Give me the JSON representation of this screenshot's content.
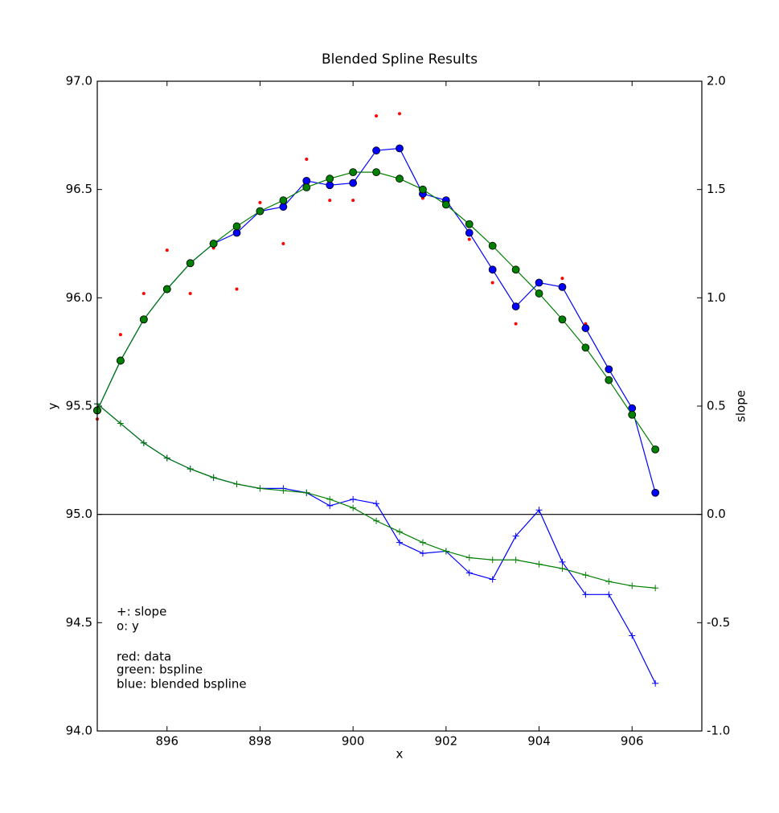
{
  "chart_data": {
    "type": "line",
    "title": "Blended Spline Results",
    "xlabel": "x",
    "ylabel": "y",
    "y2label": "slope",
    "xlim": [
      894.5,
      907.5
    ],
    "ylim": [
      94.0,
      97.0
    ],
    "y2lim": [
      -1.0,
      2.0
    ],
    "xticks": [
      896,
      898,
      900,
      902,
      904,
      906
    ],
    "yticks": [
      {
        "value": 94,
        "label": "94.0"
      },
      94.5,
      {
        "value": 95,
        "label": "95.0"
      },
      95.5,
      {
        "value": 96,
        "label": "96.0"
      },
      96.5,
      {
        "value": 97,
        "label": "97.0"
      }
    ],
    "y2ticks": [
      {
        "value": -1,
        "label": "-1.0"
      },
      -0.5,
      {
        "value": 0,
        "label": "0.0"
      },
      0.5,
      {
        "value": 1,
        "label": "1.0"
      },
      1.5,
      {
        "value": 2,
        "label": "2.0"
      }
    ],
    "hline": {
      "axis": "y2",
      "value": 0,
      "color": "#000000"
    },
    "x": [
      894.5,
      895,
      895.5,
      896,
      896.5,
      897,
      897.5,
      898,
      898.5,
      899,
      899.5,
      900,
      900.5,
      901,
      901.5,
      902,
      902.5,
      903,
      903.5,
      904,
      904.5,
      905,
      905.5,
      906,
      906.5
    ],
    "series": [
      {
        "color": "#ff0000",
        "marker": ".",
        "line": false,
        "axis": "y",
        "values": [
          95.44,
          95.83,
          96.02,
          96.22,
          96.02,
          96.23,
          96.04,
          96.44,
          96.25,
          96.64,
          96.45,
          96.45,
          96.84,
          96.85,
          96.46,
          96.45,
          96.27,
          96.07,
          95.88,
          96.08,
          96.09,
          95.88,
          95.67,
          95.48,
          95.09
        ]
      },
      {
        "color": "#0000ff",
        "marker": "o",
        "line": true,
        "axis": "y",
        "values": [
          95.48,
          95.71,
          95.9,
          96.04,
          96.16,
          96.25,
          96.3,
          96.4,
          96.42,
          96.54,
          96.52,
          96.53,
          96.68,
          96.69,
          96.48,
          96.45,
          96.3,
          96.13,
          95.96,
          96.07,
          96.05,
          95.86,
          95.67,
          95.49,
          95.1
        ]
      },
      {
        "color": "#008000",
        "marker": "o",
        "line": true,
        "axis": "y",
        "values": [
          95.48,
          95.71,
          95.9,
          96.04,
          96.16,
          96.25,
          96.33,
          96.4,
          96.45,
          96.51,
          96.55,
          96.58,
          96.58,
          96.55,
          96.5,
          96.43,
          96.34,
          96.24,
          96.13,
          96.02,
          95.9,
          95.77,
          95.62,
          95.46,
          95.3
        ]
      },
      {
        "color": "#0000ff",
        "marker": "+",
        "line": true,
        "axis": "y2",
        "values": [
          0.51,
          0.42,
          0.33,
          0.26,
          0.21,
          0.17,
          0.14,
          0.12,
          0.12,
          0.1,
          0.04,
          0.07,
          0.05,
          -0.13,
          -0.18,
          -0.17,
          -0.27,
          -0.3,
          -0.1,
          0.02,
          -0.22,
          -0.37,
          -0.37,
          -0.56,
          -0.78
        ]
      },
      {
        "color": "#008000",
        "marker": "+",
        "line": true,
        "axis": "y2",
        "values": [
          0.51,
          0.42,
          0.33,
          0.26,
          0.21,
          0.17,
          0.14,
          0.12,
          0.11,
          0.1,
          0.07,
          0.03,
          -0.03,
          -0.08,
          -0.13,
          -0.17,
          -0.2,
          -0.21,
          -0.21,
          -0.23,
          -0.25,
          -0.28,
          -0.31,
          -0.33,
          -0.34
        ]
      }
    ],
    "annotations": [
      "+: slope",
      "o: y",
      "red: data",
      "green: bspline",
      "blue: blended bspline"
    ]
  }
}
